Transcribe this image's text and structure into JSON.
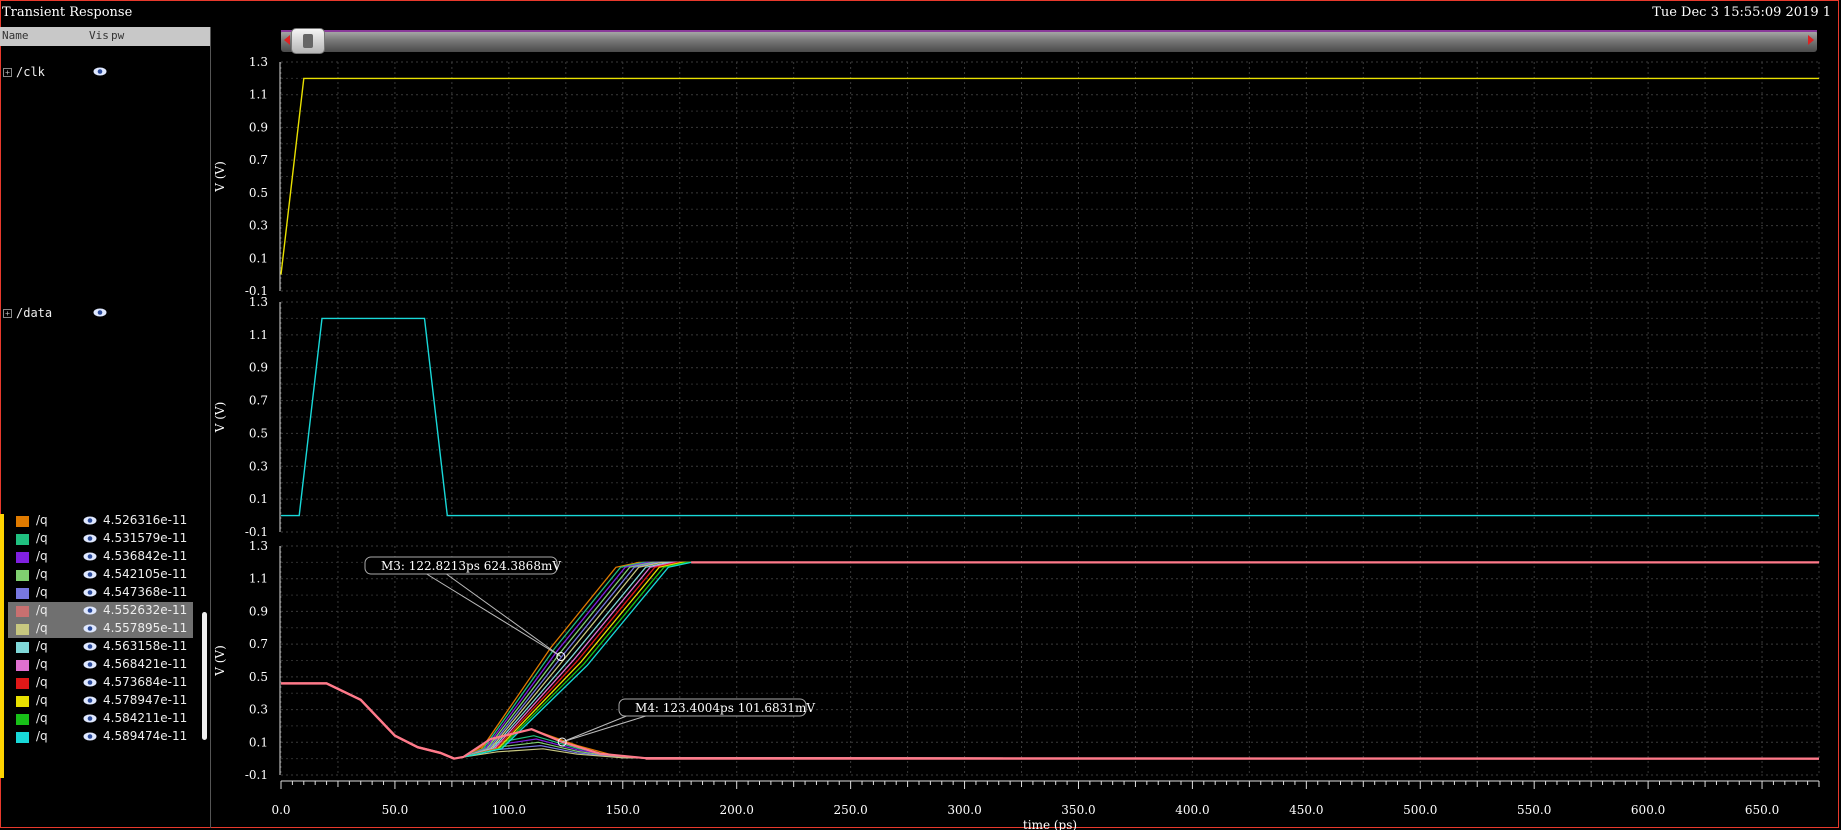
{
  "window": {
    "title": "Transient Response",
    "datestamp": "Tue Dec 3 15:55:09 2019  1"
  },
  "panel_header": {
    "name_col": "Name",
    "vis_col": "Vis",
    "pw_col": "pw"
  },
  "signals": [
    {
      "name": "/clk"
    },
    {
      "name": "/data"
    }
  ],
  "legend": [
    {
      "name": "/q",
      "value": "4.526316e-11",
      "color": "#e07b00",
      "selected": false
    },
    {
      "name": "/q",
      "value": "4.531579e-11",
      "color": "#20c080",
      "selected": false
    },
    {
      "name": "/q",
      "value": "4.536842e-11",
      "color": "#8020e0",
      "selected": false
    },
    {
      "name": "/q",
      "value": "4.542105e-11",
      "color": "#80d070",
      "selected": false
    },
    {
      "name": "/q",
      "value": "4.547368e-11",
      "color": "#7878e0",
      "selected": false
    },
    {
      "name": "/q",
      "value": "4.552632e-11",
      "color": "#c87070",
      "selected": true
    },
    {
      "name": "/q",
      "value": "4.557895e-11",
      "color": "#c8c880",
      "selected": true
    },
    {
      "name": "/q",
      "value": "4.563158e-11",
      "color": "#80d8d8",
      "selected": false
    },
    {
      "name": "/q",
      "value": "4.568421e-11",
      "color": "#e070d0",
      "selected": false
    },
    {
      "name": "/q",
      "value": "4.573684e-11",
      "color": "#e01818",
      "selected": false
    },
    {
      "name": "/q",
      "value": "4.578947e-11",
      "color": "#e8e000",
      "selected": false
    },
    {
      "name": "/q",
      "value": "4.584211e-11",
      "color": "#18c018",
      "selected": false
    },
    {
      "name": "/q",
      "value": "4.589474e-11",
      "color": "#18d8d8",
      "selected": false
    }
  ],
  "markers": {
    "m3": "M3: 122.8213ps 624.3868mV",
    "m4": "M4: 123.4004ps 101.6831mV"
  },
  "chart_data": {
    "type": "line",
    "xlabel": "time (ps)",
    "xlim": [
      0,
      675
    ],
    "xticks": [
      "0.0",
      "50.0",
      "100.0",
      "150.0",
      "200.0",
      "250.0",
      "300.0",
      "350.0",
      "400.0",
      "450.0",
      "500.0",
      "550.0",
      "600.0",
      "650.0"
    ],
    "grid": true,
    "panels": [
      {
        "signal": "/clk",
        "ylabel": "V (V)",
        "ylim": [
          -0.1,
          1.3
        ],
        "yticks": [
          "1.3",
          "1.1",
          "0.9",
          "0.7",
          "0.5",
          "0.3",
          "0.1",
          "-0.1"
        ],
        "series": [
          {
            "name": "/clk",
            "color": "#e8e000",
            "x": [
              0,
              10,
              675
            ],
            "y": [
              0.0,
              1.2,
              1.2
            ]
          }
        ]
      },
      {
        "signal": "/data",
        "ylabel": "V (V)",
        "ylim": [
          -0.1,
          1.3
        ],
        "yticks": [
          "1.3",
          "1.1",
          "0.9",
          "0.7",
          "0.5",
          "0.3",
          "0.1",
          "-0.1"
        ],
        "series": [
          {
            "name": "/data",
            "color": "#18d8d8",
            "x": [
              0,
              8,
              18,
              63,
              73,
              675
            ],
            "y": [
              0.0,
              0.0,
              1.2,
              1.2,
              0.0,
              0.0
            ]
          }
        ]
      },
      {
        "signal": "/q",
        "ylabel": "V (V)",
        "ylim": [
          -0.1,
          1.3
        ],
        "yticks": [
          "1.3",
          "1.1",
          "0.9",
          "0.7",
          "0.5",
          "0.3",
          "0.1",
          "-0.1"
        ],
        "base": {
          "x": [
            0,
            20,
            35,
            50,
            60,
            70,
            76,
            80
          ],
          "y": [
            0.46,
            0.46,
            0.36,
            0.14,
            0.07,
            0.035,
            0.0,
            0.01
          ]
        },
        "rise_ends_x": [
          157,
          159,
          161,
          163,
          165,
          167,
          170,
          172,
          174,
          176,
          178,
          180
        ],
        "rise_series_colors": [
          "#e07b00",
          "#20c080",
          "#8020e0",
          "#80d070",
          "#7878e0",
          "#c8c880",
          "#80d8d8",
          "#e070d0",
          "#e01818",
          "#e8e000",
          "#18c018",
          "#18d8d8"
        ],
        "decay_peaks": [
          0.18,
          0.14,
          0.12,
          0.1,
          0.08,
          0.06
        ],
        "final_high": 1.2,
        "final_low": 0.0,
        "marker_points": [
          {
            "x": 122.8213,
            "y": 0.6243868
          },
          {
            "x": 123.4004,
            "y": 0.1016831
          }
        ]
      }
    ]
  }
}
